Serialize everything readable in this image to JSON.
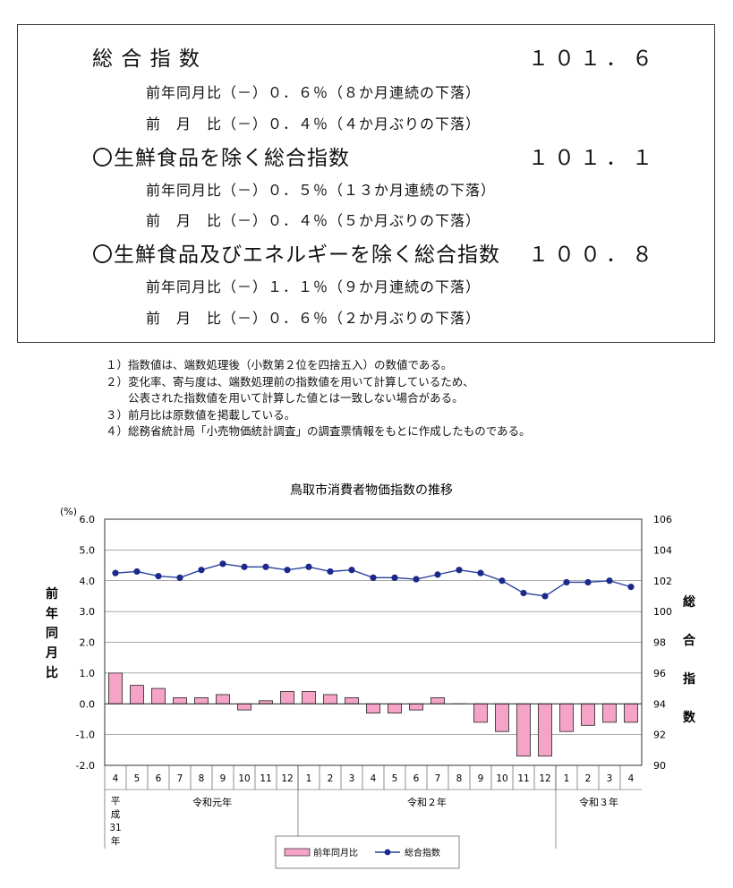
{
  "summary": {
    "rows": [
      {
        "label": "総 合 指 数",
        "value": "１０１．６",
        "yoy": "前年同月比（－）０．６％（８か月連続の下落）",
        "mom": "前　月　比（－）０．４％（４か月ぶりの下落）"
      },
      {
        "label": "〇生鮮食品を除く総合指数",
        "value": "１０１．１",
        "yoy": "前年同月比（－）０．５％（１３か月連続の下落）",
        "mom": "前　月　比（－）０．４％（５か月ぶりの下落）"
      },
      {
        "label": "〇生鮮食品及びエネルギーを除く総合指数",
        "value": "１００．８",
        "yoy": "前年同月比（－）１．１％（９か月連続の下落）",
        "mom": "前　月　比（－）０．６％（２か月ぶりの下落）"
      }
    ]
  },
  "notes": [
    "１）指数値は、端数処理後（小数第２位を四捨五入）の数値である。",
    "２）変化率、寄与度は、端数処理前の指数値を用いて計算しているため、",
    "　　公表された指数値を用いて計算した値とは一致しない場合がある。",
    "３）前月比は原数値を掲載している。",
    "４）総務省統計局「小売物価統計調査」の調査票情報をもとに作成したものである。"
  ],
  "chart_data": {
    "type": "bar",
    "title": "鳥取市消費者物価指数の推移",
    "unit_label": "(%)",
    "ylabel_left": "前年同月比",
    "ylabel_right": "総合指数",
    "ylim_left": [
      -2.0,
      6.0
    ],
    "ylim_right": [
      90,
      106
    ],
    "yticks_left": [
      "6.0",
      "5.0",
      "4.0",
      "3.0",
      "2.0",
      "1.0",
      "0.0",
      "-1.0",
      "-2.0"
    ],
    "yticks_right": [
      "106",
      "104",
      "102",
      "100",
      "98",
      "96",
      "94",
      "92",
      "90"
    ],
    "categories": [
      "4",
      "5",
      "6",
      "7",
      "8",
      "9",
      "10",
      "11",
      "12",
      "1",
      "2",
      "3",
      "4",
      "5",
      "6",
      "7",
      "8",
      "9",
      "10",
      "11",
      "12",
      "1",
      "2",
      "3",
      "4"
    ],
    "eras": [
      {
        "label": "平成31年",
        "start": 0,
        "end": 0
      },
      {
        "label": "令和元年",
        "start": 1,
        "end": 8
      },
      {
        "label": "令和２年",
        "start": 9,
        "end": 20
      },
      {
        "label": "令和３年",
        "start": 21,
        "end": 24
      }
    ],
    "series": [
      {
        "name": "前年同月比",
        "type": "bar",
        "axis": "left",
        "color": "#f5a3c7",
        "values": [
          1.0,
          0.6,
          0.5,
          0.2,
          0.2,
          0.3,
          -0.2,
          0.1,
          0.4,
          0.4,
          0.3,
          0.2,
          -0.3,
          -0.3,
          -0.2,
          0.2,
          0.0,
          -0.6,
          -0.9,
          -1.7,
          -1.7,
          -0.9,
          -0.7,
          -0.6,
          -0.6
        ]
      },
      {
        "name": "総合指数",
        "type": "line",
        "axis": "right",
        "color": "#2a3f9e",
        "values": [
          102.5,
          102.6,
          102.3,
          102.2,
          102.7,
          103.1,
          102.9,
          102.9,
          102.7,
          102.9,
          102.6,
          102.7,
          102.2,
          102.2,
          102.1,
          102.4,
          102.7,
          102.5,
          102.0,
          101.2,
          101.0,
          101.9,
          101.9,
          102.0,
          101.6
        ]
      }
    ],
    "legend_position": "bottom"
  }
}
